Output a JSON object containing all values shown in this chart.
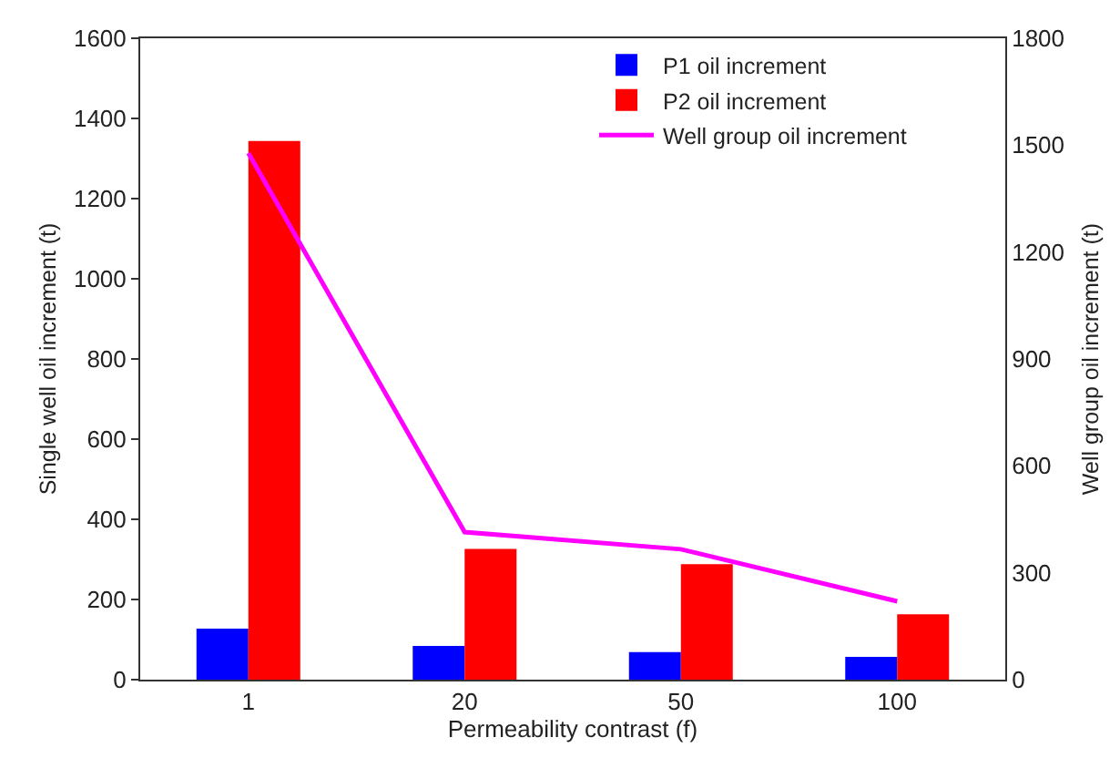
{
  "chart_data": {
    "type": "bar",
    "xlabel": "Permeability contrast (f)",
    "ylabel": "Single well oil increment (t)",
    "y2label": "Well group oil increment (t)",
    "categories": [
      "1",
      "20",
      "50",
      "100"
    ],
    "series": [
      {
        "name": "P1 oil increment",
        "color": "#0000ff",
        "values": [
          127,
          84,
          69,
          57
        ]
      },
      {
        "name": "P2 oil increment",
        "color": "#ff0000",
        "values": [
          1344,
          326,
          288,
          163
        ]
      },
      {
        "name": "Well group oil increment",
        "color": "#ff00ff",
        "type": "line",
        "axis": "y2",
        "marker": "none",
        "line_style": "solid",
        "values": [
          1478,
          414,
          366,
          220
        ]
      }
    ],
    "ylim": [
      0,
      1600
    ],
    "yticks": [
      0,
      200,
      400,
      600,
      800,
      1000,
      1200,
      1400,
      1600
    ],
    "y2lim": [
      0,
      1800
    ],
    "y2ticks": [
      0,
      300,
      600,
      900,
      1200,
      1500,
      1800
    ],
    "legend": "top right"
  }
}
